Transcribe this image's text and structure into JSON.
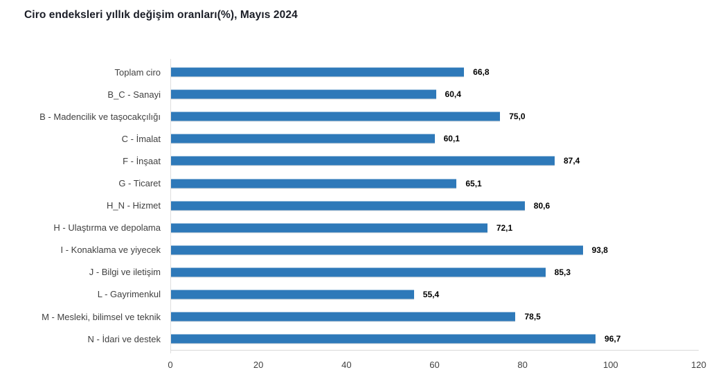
{
  "title": "Ciro endeksleri yıllık değişim oranları(%), Mayıs 2024",
  "colors": {
    "bar": "#2E79B9",
    "title_text": "#1A1D26",
    "category_text": "#404040",
    "value_text": "#000000",
    "axis_line": "#D9D9D9"
  },
  "chart_data": {
    "type": "bar",
    "orientation": "horizontal",
    "title": "Ciro endeksleri yıllık değişim oranları(%), Mayıs 2024",
    "categories": [
      "Toplam ciro",
      "B_C - Sanayi",
      "B - Madencilik ve taşocakçılığı",
      "C - İmalat",
      "F - İnşaat",
      "G - Ticaret",
      "H_N - Hizmet",
      "H - Ulaştırma ve depolama",
      "I - Konaklama ve yiyecek",
      "J - Bilgi ve iletişim",
      "L - Gayrimenkul",
      "M - Mesleki, bilimsel ve teknik",
      "N - İdari ve destek"
    ],
    "values": [
      66.8,
      60.4,
      75.0,
      60.1,
      87.4,
      65.1,
      80.6,
      72.1,
      93.8,
      85.3,
      55.4,
      78.5,
      96.7
    ],
    "value_labels": [
      "66,8",
      "60,4",
      "75,0",
      "60,1",
      "87,4",
      "65,1",
      "80,6",
      "72,1",
      "93,8",
      "85,3",
      "55,4",
      "78,5",
      "96,7"
    ],
    "xlabel": "",
    "ylabel": "",
    "xlim": [
      0,
      120
    ],
    "x_ticks": [
      0,
      20,
      40,
      60,
      80,
      100,
      120
    ],
    "grid": false,
    "legend": false,
    "bar_color": "#2E79B9"
  }
}
